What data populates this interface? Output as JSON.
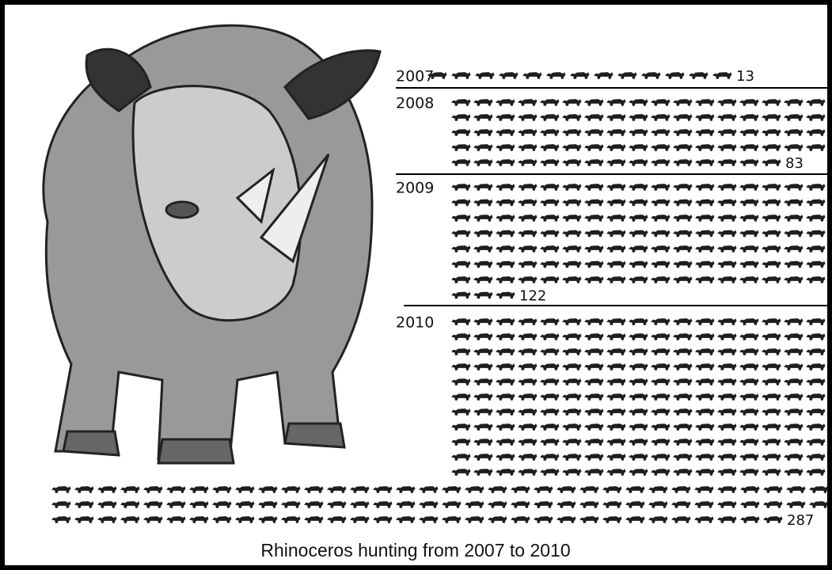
{
  "chart_data": {
    "type": "pictograph",
    "title": "Rhinoceros hunting from 2007 to 2010",
    "categories": [
      "2007",
      "2008",
      "2009",
      "2010"
    ],
    "values": [
      13,
      83,
      122,
      287
    ],
    "color": "#1e1e1e"
  }
}
